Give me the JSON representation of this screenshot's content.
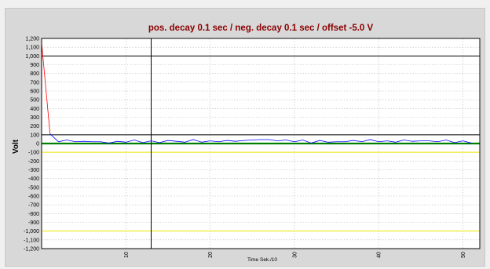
{
  "chart_data": {
    "type": "line",
    "title": "pos. decay 0.1 sec / neg. decay 0.1 sec / offset -5.0 V",
    "xlabel": "Time Sek./10",
    "ylabel": "Volt",
    "xlim": [
      0,
      52
    ],
    "ylim": [
      -1200,
      1200
    ],
    "x_ticks": [
      "10",
      "20",
      "30",
      "40",
      "50"
    ],
    "y_ticks": [
      "1,200",
      "1,100",
      "1,000",
      "900",
      "800",
      "700",
      "600",
      "500",
      "400",
      "300",
      "200",
      "100",
      "0",
      "-100",
      "-200",
      "-300",
      "-400",
      "-500",
      "-600",
      "-700",
      "-800",
      "-900",
      "-1,000",
      "-1,100",
      "-1,200"
    ],
    "grid": true,
    "reference_lines": [
      {
        "axis": "y",
        "value": 1000,
        "color": "#000000"
      },
      {
        "axis": "y",
        "value": 100,
        "color": "#000000"
      },
      {
        "axis": "y",
        "value": -100,
        "color": "#e8e800"
      },
      {
        "axis": "y",
        "value": -1000,
        "color": "#e8e800"
      },
      {
        "axis": "y",
        "value": 0,
        "color": "#008000"
      },
      {
        "axis": "x",
        "value": 13,
        "color": "#000000"
      }
    ],
    "series": [
      {
        "color": "#ff0000",
        "x": [
          0,
          1
        ],
        "y": [
          1150,
          110
        ]
      },
      {
        "color": "#0000ff",
        "x": [
          1,
          2,
          3,
          4,
          5,
          6,
          7,
          8,
          9,
          10,
          11,
          12,
          13,
          14,
          15,
          16,
          17,
          18,
          19,
          20,
          21,
          22,
          23,
          24,
          25,
          26,
          27,
          28,
          29,
          30,
          31,
          32,
          33,
          34,
          35,
          36,
          37,
          38,
          39,
          40,
          41,
          42,
          43,
          44,
          45,
          46,
          47,
          48,
          49,
          50,
          51
        ],
        "y": [
          110,
          20,
          40,
          20,
          25,
          20,
          20,
          5,
          25,
          15,
          40,
          10,
          30,
          10,
          35,
          25,
          15,
          45,
          15,
          30,
          20,
          35,
          25,
          35,
          40,
          45,
          45,
          30,
          40,
          20,
          40,
          5,
          35,
          15,
          20,
          20,
          35,
          20,
          45,
          20,
          30,
          15,
          40,
          25,
          30,
          30,
          20,
          40,
          10,
          30,
          5
        ]
      }
    ]
  }
}
